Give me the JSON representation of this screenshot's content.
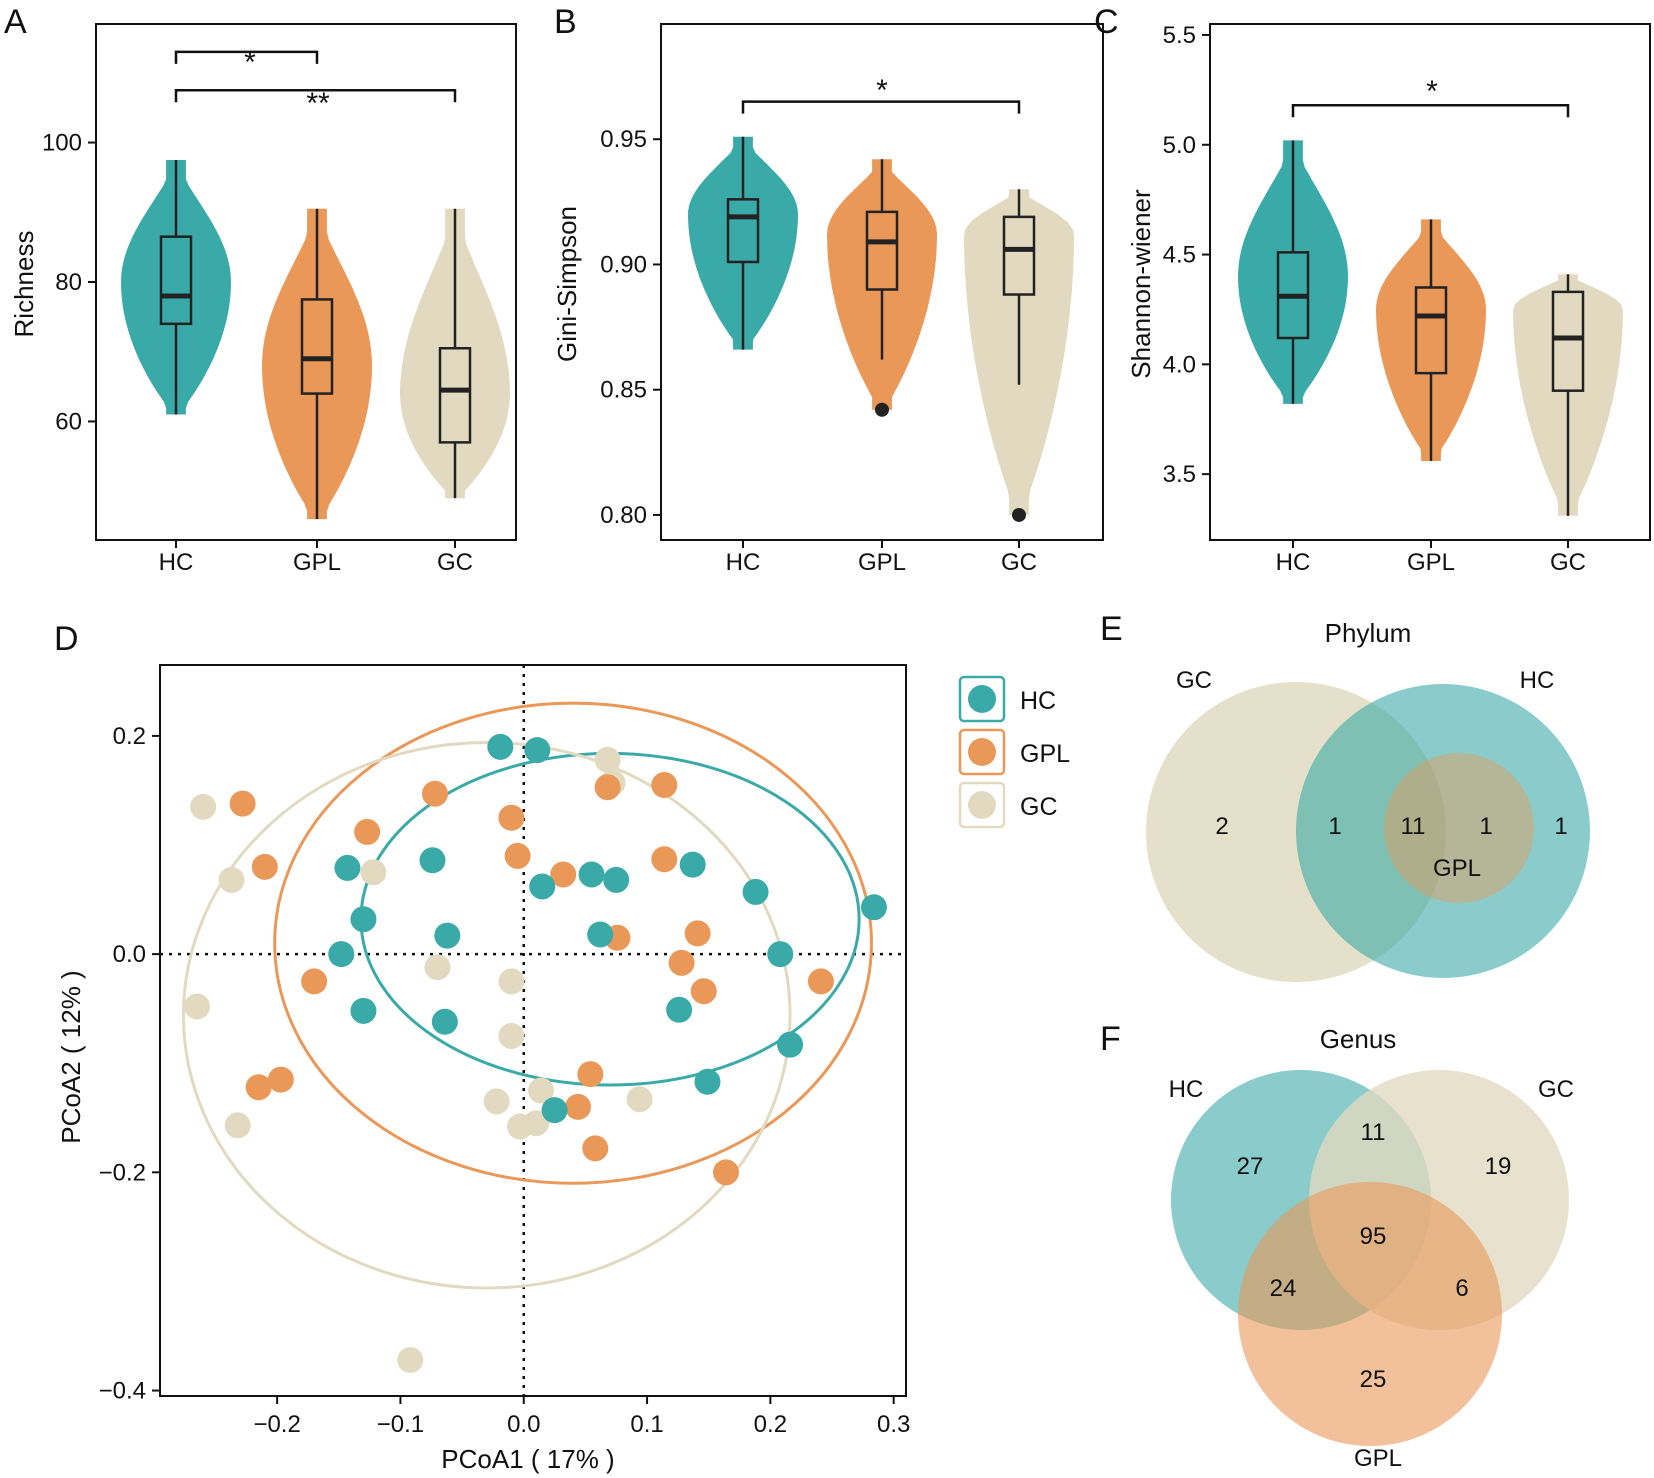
{
  "colors": {
    "HC": "#3aaaa8",
    "GPL": "#ea9858",
    "GC": "#e1dac0",
    "axis": "#111111"
  },
  "chart_data": [
    {
      "id": "A",
      "panel_label": "A",
      "type": "violin",
      "ylabel": "Richness",
      "categories": [
        "HC",
        "GPL",
        "GC"
      ],
      "ylim": [
        43,
        117
      ],
      "yticks": [
        60,
        80,
        100
      ],
      "ytick_labels": [
        "60",
        "80",
        "100"
      ],
      "groups": [
        {
          "name": "HC",
          "violin_range": [
            61,
            97.5
          ],
          "whisker": [
            61,
            97.5
          ],
          "q1": 74,
          "median": 78,
          "q3": 86.5,
          "mode": 80,
          "outliers": []
        },
        {
          "name": "GPL",
          "violin_range": [
            46,
            90.5
          ],
          "whisker": [
            46,
            90.5
          ],
          "q1": 64,
          "median": 69,
          "q3": 77.5,
          "mode": 68,
          "outliers": []
        },
        {
          "name": "GC",
          "violin_range": [
            49,
            90.5
          ],
          "whisker": [
            49,
            90.5
          ],
          "q1": 57,
          "median": 64.5,
          "q3": 70.5,
          "mode": 64,
          "outliers": []
        }
      ],
      "brackets": [
        {
          "from": "HC",
          "to": "GPL",
          "y": 113,
          "label": "*"
        },
        {
          "from": "HC",
          "to": "GC",
          "y": 107.5,
          "label": "**"
        }
      ]
    },
    {
      "id": "B",
      "panel_label": "B",
      "type": "violin",
      "ylabel": "Gini-Simpson",
      "categories": [
        "HC",
        "GPL",
        "GC"
      ],
      "ylim": [
        0.79,
        0.996
      ],
      "yticks": [
        0.8,
        0.85,
        0.9,
        0.95
      ],
      "ytick_labels": [
        "0.80",
        "0.85",
        "0.90",
        "0.95"
      ],
      "groups": [
        {
          "name": "HC",
          "violin_range": [
            0.866,
            0.951
          ],
          "whisker": [
            0.866,
            0.951
          ],
          "q1": 0.901,
          "median": 0.919,
          "q3": 0.926,
          "mode": 0.92,
          "outliers": []
        },
        {
          "name": "GPL",
          "violin_range": [
            0.842,
            0.942
          ],
          "whisker": [
            0.862,
            0.942
          ],
          "q1": 0.89,
          "median": 0.909,
          "q3": 0.921,
          "mode": 0.912,
          "outliers": [
            0.842
          ]
        },
        {
          "name": "GC",
          "violin_range": [
            0.8,
            0.93
          ],
          "whisker": [
            0.852,
            0.93
          ],
          "q1": 0.888,
          "median": 0.906,
          "q3": 0.919,
          "mode": 0.912,
          "outliers": [
            0.8
          ]
        }
      ],
      "brackets": [
        {
          "from": "HC",
          "to": "GC",
          "y": 0.965,
          "label": "*"
        }
      ]
    },
    {
      "id": "C",
      "panel_label": "C",
      "type": "violin",
      "ylabel": "Shannon-wiener",
      "categories": [
        "HC",
        "GPL",
        "GC"
      ],
      "ylim": [
        3.2,
        5.55
      ],
      "yticks": [
        3.5,
        4.0,
        4.5,
        5.0,
        5.5
      ],
      "ytick_labels": [
        "3.5",
        "4.0",
        "4.5",
        "5.0",
        "5.5"
      ],
      "groups": [
        {
          "name": "HC",
          "violin_range": [
            3.82,
            5.02
          ],
          "whisker": [
            3.82,
            5.02
          ],
          "q1": 4.12,
          "median": 4.31,
          "q3": 4.51,
          "mode": 4.4,
          "outliers": []
        },
        {
          "name": "GPL",
          "violin_range": [
            3.56,
            4.66
          ],
          "whisker": [
            3.56,
            4.66
          ],
          "q1": 3.96,
          "median": 4.22,
          "q3": 4.35,
          "mode": 4.25,
          "outliers": []
        },
        {
          "name": "GC",
          "violin_range": [
            3.31,
            4.41
          ],
          "whisker": [
            3.31,
            4.41
          ],
          "q1": 3.88,
          "median": 4.12,
          "q3": 4.33,
          "mode": 4.25,
          "outliers": []
        }
      ],
      "brackets": [
        {
          "from": "HC",
          "to": "GC",
          "y": 5.18,
          "label": "*"
        }
      ]
    },
    {
      "id": "D",
      "panel_label": "D",
      "type": "scatter",
      "xlabel": "PCoA1 ( 17% )",
      "ylabel": "PCoA2 ( 12% )",
      "xlim": [
        -0.295,
        0.31
      ],
      "ylim": [
        -0.405,
        0.265
      ],
      "xticks": [
        -0.2,
        -0.1,
        0.0,
        0.1,
        0.2,
        0.3
      ],
      "xtick_labels": [
        "−0.2",
        "−0.1",
        "0.0",
        "0.1",
        "0.2",
        "0.3"
      ],
      "yticks": [
        -0.4,
        -0.2,
        0.0,
        0.2
      ],
      "ytick_labels": [
        "−0.4",
        "−0.2",
        "0.0",
        "0.2"
      ],
      "legend": {
        "position": "right",
        "entries": [
          "HC",
          "GPL",
          "GC"
        ]
      },
      "series": [
        {
          "name": "GC",
          "points": [
            [
              -0.26,
              0.135
            ],
            [
              -0.237,
              0.068
            ],
            [
              -0.265,
              -0.048
            ],
            [
              -0.232,
              -0.157
            ],
            [
              -0.122,
              0.075
            ],
            [
              -0.07,
              -0.012
            ],
            [
              -0.01,
              -0.025
            ],
            [
              -0.01,
              -0.075
            ],
            [
              -0.022,
              -0.135
            ],
            [
              -0.003,
              -0.158
            ],
            [
              0.01,
              -0.155
            ],
            [
              0.014,
              -0.125
            ],
            [
              0.068,
              0.178
            ],
            [
              0.072,
              0.157
            ],
            [
              0.094,
              -0.133
            ],
            [
              -0.092,
              -0.372
            ]
          ]
        },
        {
          "name": "GPL",
          "points": [
            [
              -0.228,
              0.138
            ],
            [
              -0.21,
              0.08
            ],
            [
              -0.17,
              -0.025
            ],
            [
              -0.215,
              -0.122
            ],
            [
              -0.197,
              -0.115
            ],
            [
              -0.127,
              0.112
            ],
            [
              -0.072,
              0.147
            ],
            [
              -0.01,
              0.125
            ],
            [
              -0.005,
              0.09
            ],
            [
              0.032,
              0.073
            ],
            [
              0.068,
              0.153
            ],
            [
              0.114,
              0.155
            ],
            [
              0.114,
              0.087
            ],
            [
              0.076,
              0.015
            ],
            [
              0.128,
              -0.008
            ],
            [
              0.141,
              0.019
            ],
            [
              0.146,
              -0.034
            ],
            [
              0.054,
              -0.11
            ],
            [
              0.044,
              -0.14
            ],
            [
              0.058,
              -0.178
            ],
            [
              0.164,
              -0.2
            ],
            [
              0.241,
              -0.025
            ]
          ]
        },
        {
          "name": "HC",
          "points": [
            [
              -0.019,
              0.19
            ],
            [
              0.011,
              0.187
            ],
            [
              -0.143,
              0.079
            ],
            [
              -0.13,
              0.032
            ],
            [
              -0.148,
              0.0
            ],
            [
              -0.13,
              -0.052
            ],
            [
              -0.074,
              0.086
            ],
            [
              -0.062,
              0.017
            ],
            [
              -0.064,
              -0.062
            ],
            [
              0.015,
              0.062
            ],
            [
              0.055,
              0.073
            ],
            [
              0.075,
              0.068
            ],
            [
              0.137,
              0.082
            ],
            [
              0.062,
              0.018
            ],
            [
              0.188,
              0.057
            ],
            [
              0.208,
              0.0
            ],
            [
              0.126,
              -0.051
            ],
            [
              0.149,
              -0.117
            ],
            [
              0.216,
              -0.083
            ],
            [
              0.284,
              0.043
            ],
            [
              0.025,
              -0.143
            ]
          ]
        }
      ],
      "ellipses": [
        {
          "name": "HC",
          "center": [
            0.07,
            0.032
          ],
          "radii": [
            0.202,
            0.152
          ]
        },
        {
          "name": "GPL",
          "center": [
            0.04,
            0.01
          ],
          "radii": [
            0.242,
            0.22
          ]
        },
        {
          "name": "GC",
          "center": [
            -0.03,
            -0.056
          ],
          "radii": [
            0.246,
            0.25
          ]
        }
      ]
    }
  ],
  "venn_phylum": {
    "panel_label": "E",
    "title": "Phylum",
    "set_labels": {
      "GC": "GC",
      "HC": "HC",
      "GPL": "GPL"
    },
    "counts": {
      "GC_only": "2",
      "GC_HC": "1",
      "all": "11",
      "HC_GPL": "1",
      "HC_only": "1"
    }
  },
  "venn_genus": {
    "panel_label": "F",
    "title": "Genus",
    "set_labels": {
      "HC": "HC",
      "GC": "GC",
      "GPL": "GPL"
    },
    "counts": {
      "HC_only": "27",
      "HC_GC": "11",
      "GC_only": "19",
      "all": "95",
      "HC_GPL": "24",
      "GC_GPL": "6",
      "GPL_only": "25"
    }
  }
}
